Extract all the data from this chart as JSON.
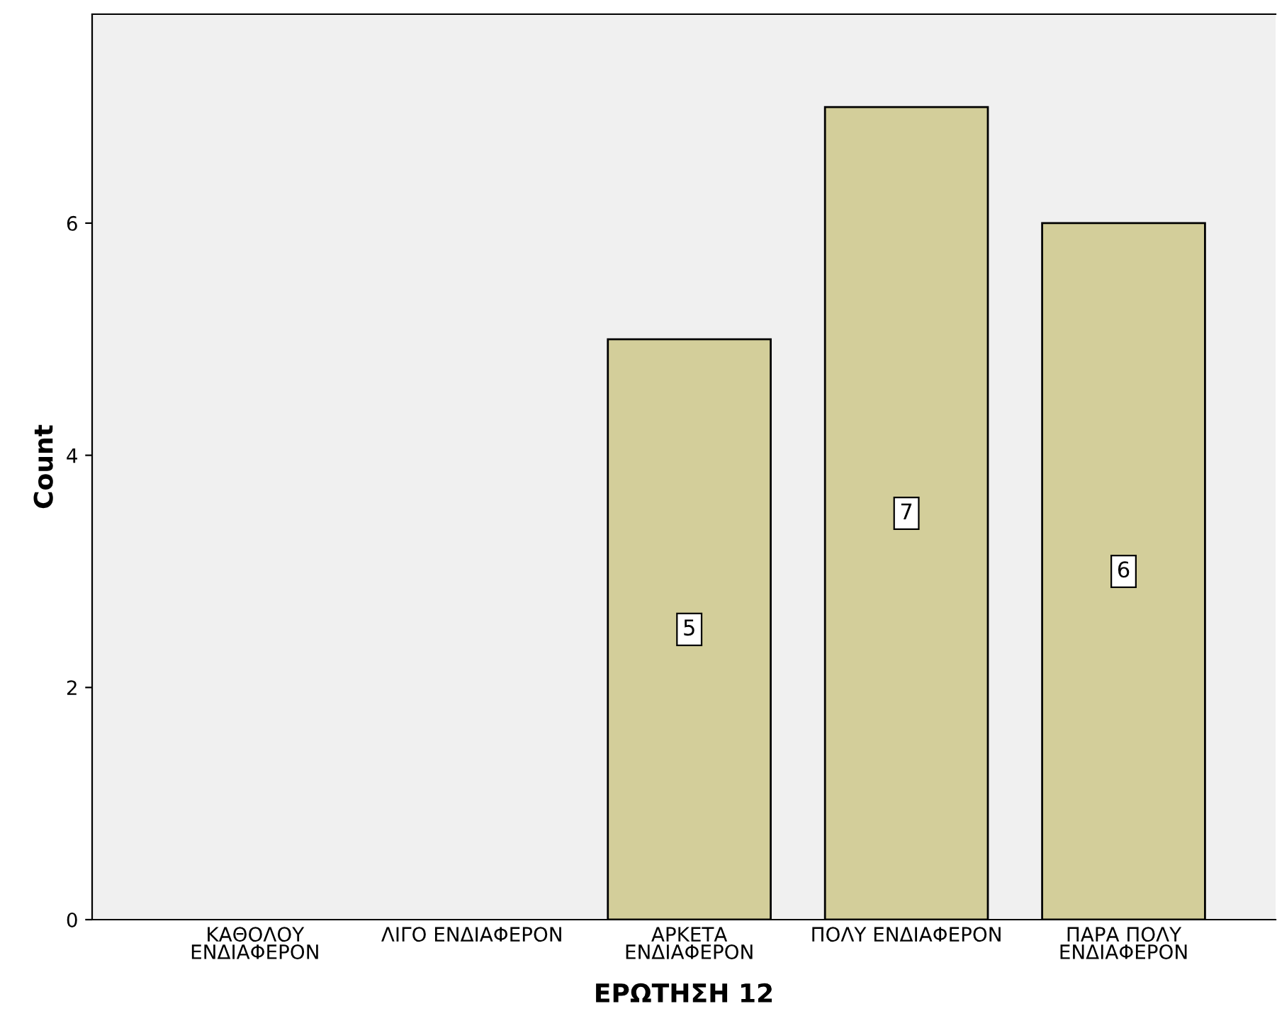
{
  "chart_data": {
    "type": "bar",
    "xlabel": "ΕΡΩΤΗΣΗ 12",
    "ylabel": "Count",
    "categories": [
      "ΚΑΘΟΛΟΥ\nΕΝΔΙΑΦΕΡΟΝ",
      "ΛΙΓΟ ΕΝΔΙΑΦΕΡΟΝ",
      "ΑΡΚΕΤΑ\nΕΝΔΙΑΦΕΡΟΝ",
      "ΠΟΛΥ ΕΝΔΙΑΦΕΡΟΝ",
      "ΠΑΡΑ ΠΟΛΥ\nΕΝΔΙΑΦΕΡΟΝ"
    ],
    "values": [
      0,
      0,
      5,
      7,
      6
    ],
    "value_labels": [
      null,
      null,
      "5",
      "7",
      "6"
    ],
    "color": "#d3ce9a",
    "ylim": [
      0,
      7.8
    ],
    "yticks": [
      0,
      2,
      4,
      6
    ],
    "grid": false,
    "legend": false
  }
}
